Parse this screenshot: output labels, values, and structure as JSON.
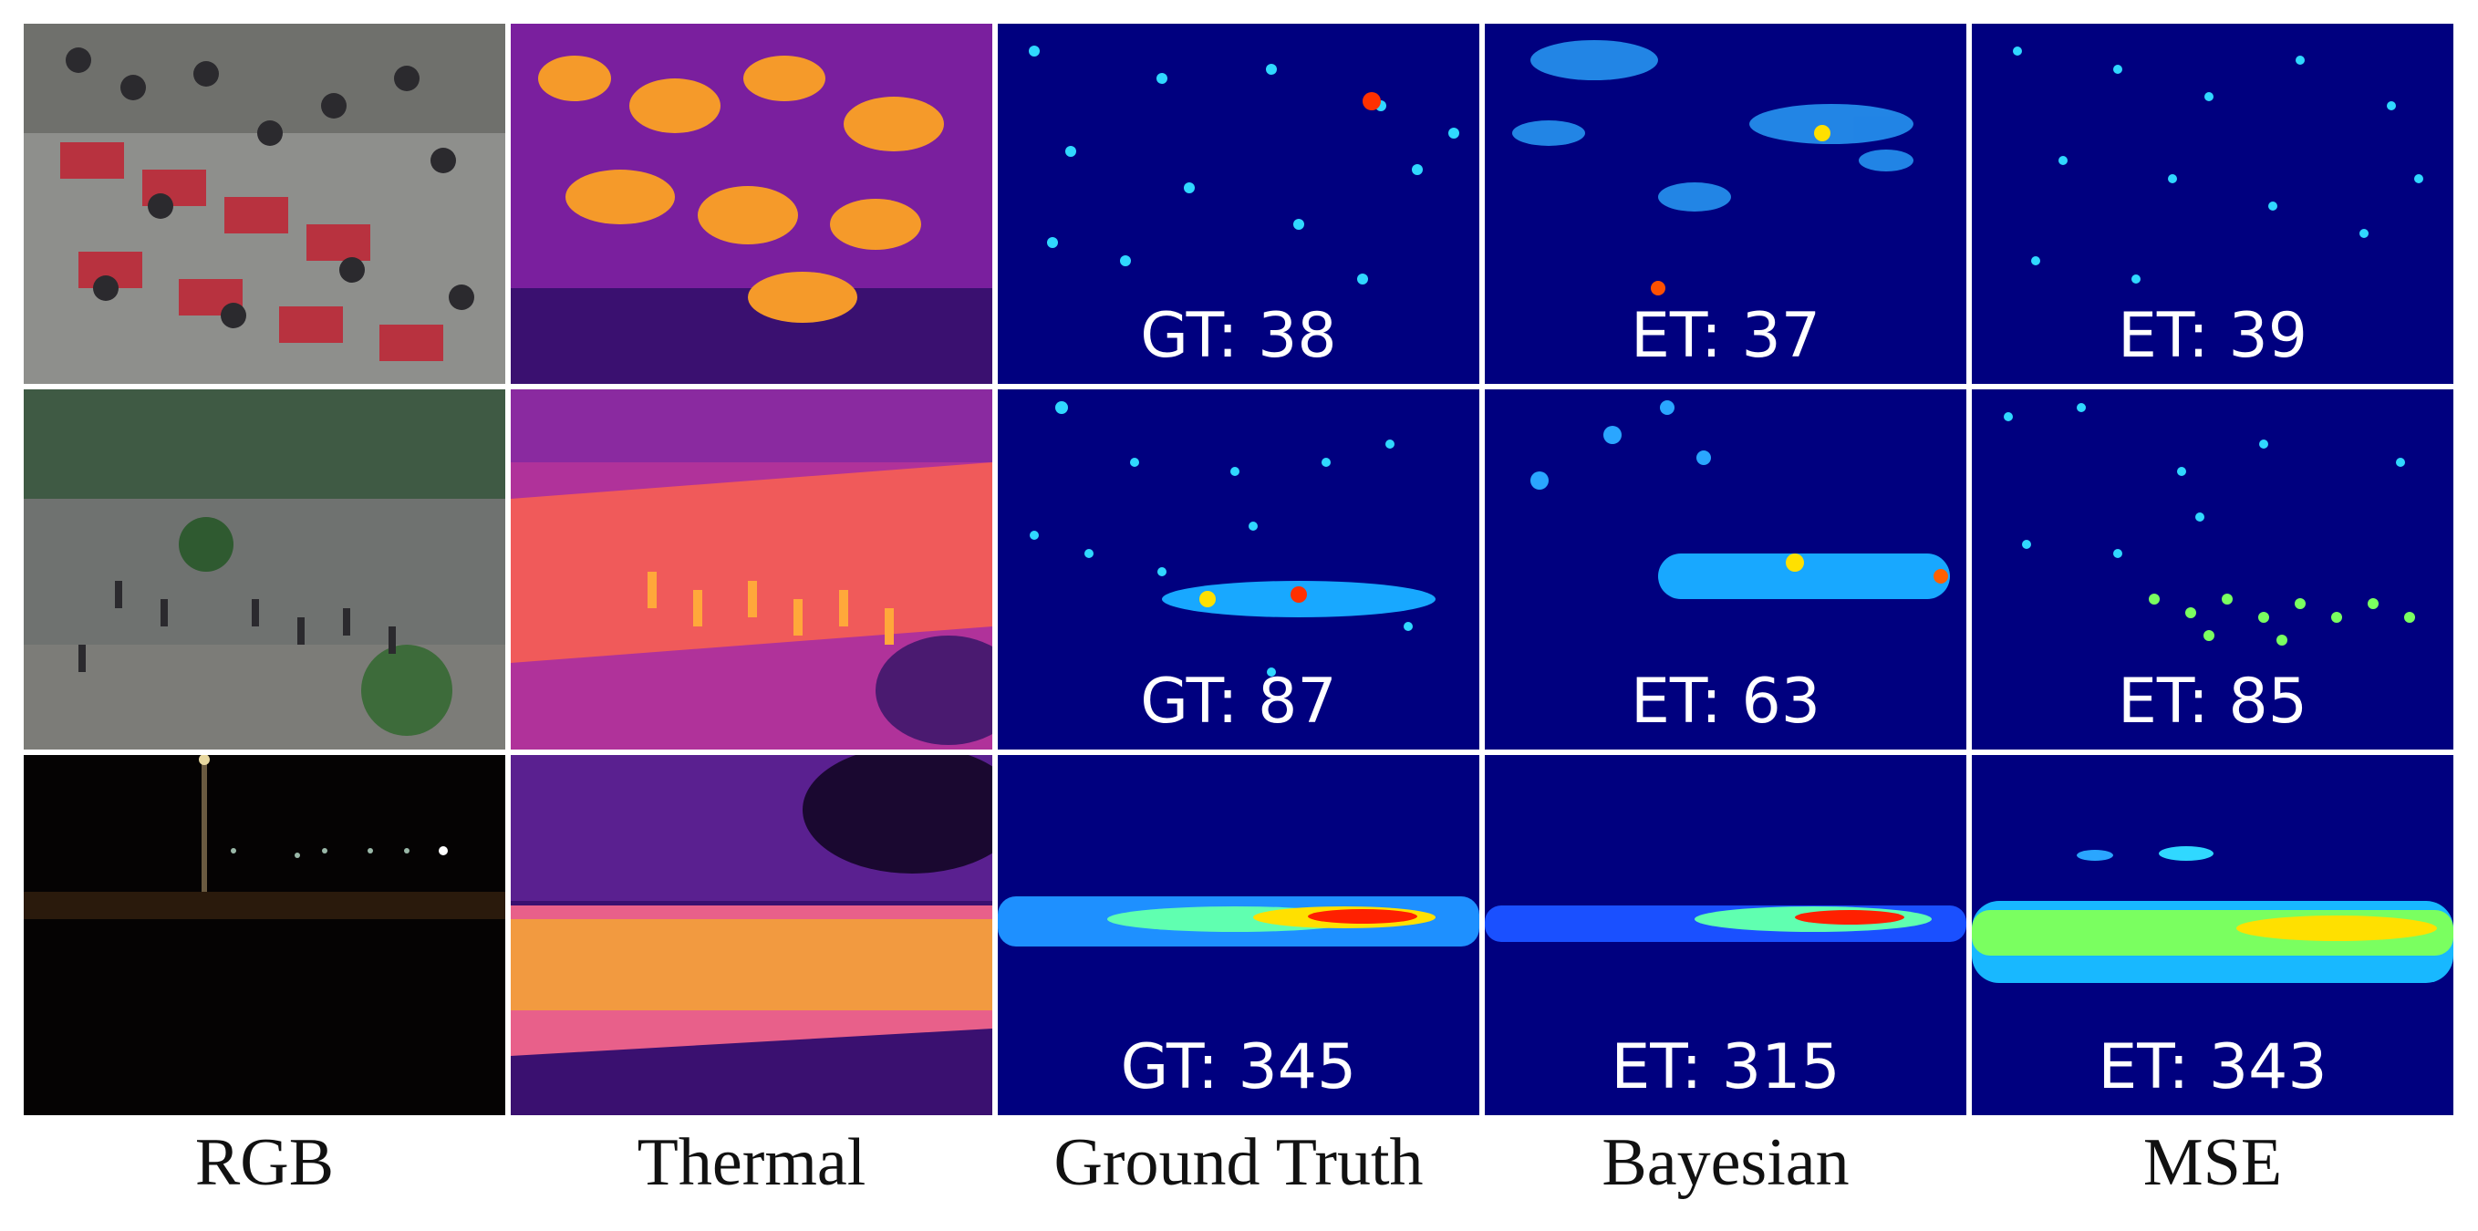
{
  "columns": [
    "RGB",
    "Thermal",
    "Ground Truth",
    "Bayesian",
    "MSE"
  ],
  "rows": [
    {
      "gt": "GT: 38",
      "bayesian": "ET: 37",
      "mse": "ET: 39"
    },
    {
      "gt": "GT: 87",
      "bayesian": "ET: 63",
      "mse": "ET: 85"
    },
    {
      "gt": "GT: 345",
      "bayesian": "ET: 315",
      "mse": "ET: 343"
    }
  ],
  "colors": {
    "density_bg": "#00007f",
    "thermal_bg": "#5a1a8a",
    "night": "#050303"
  }
}
